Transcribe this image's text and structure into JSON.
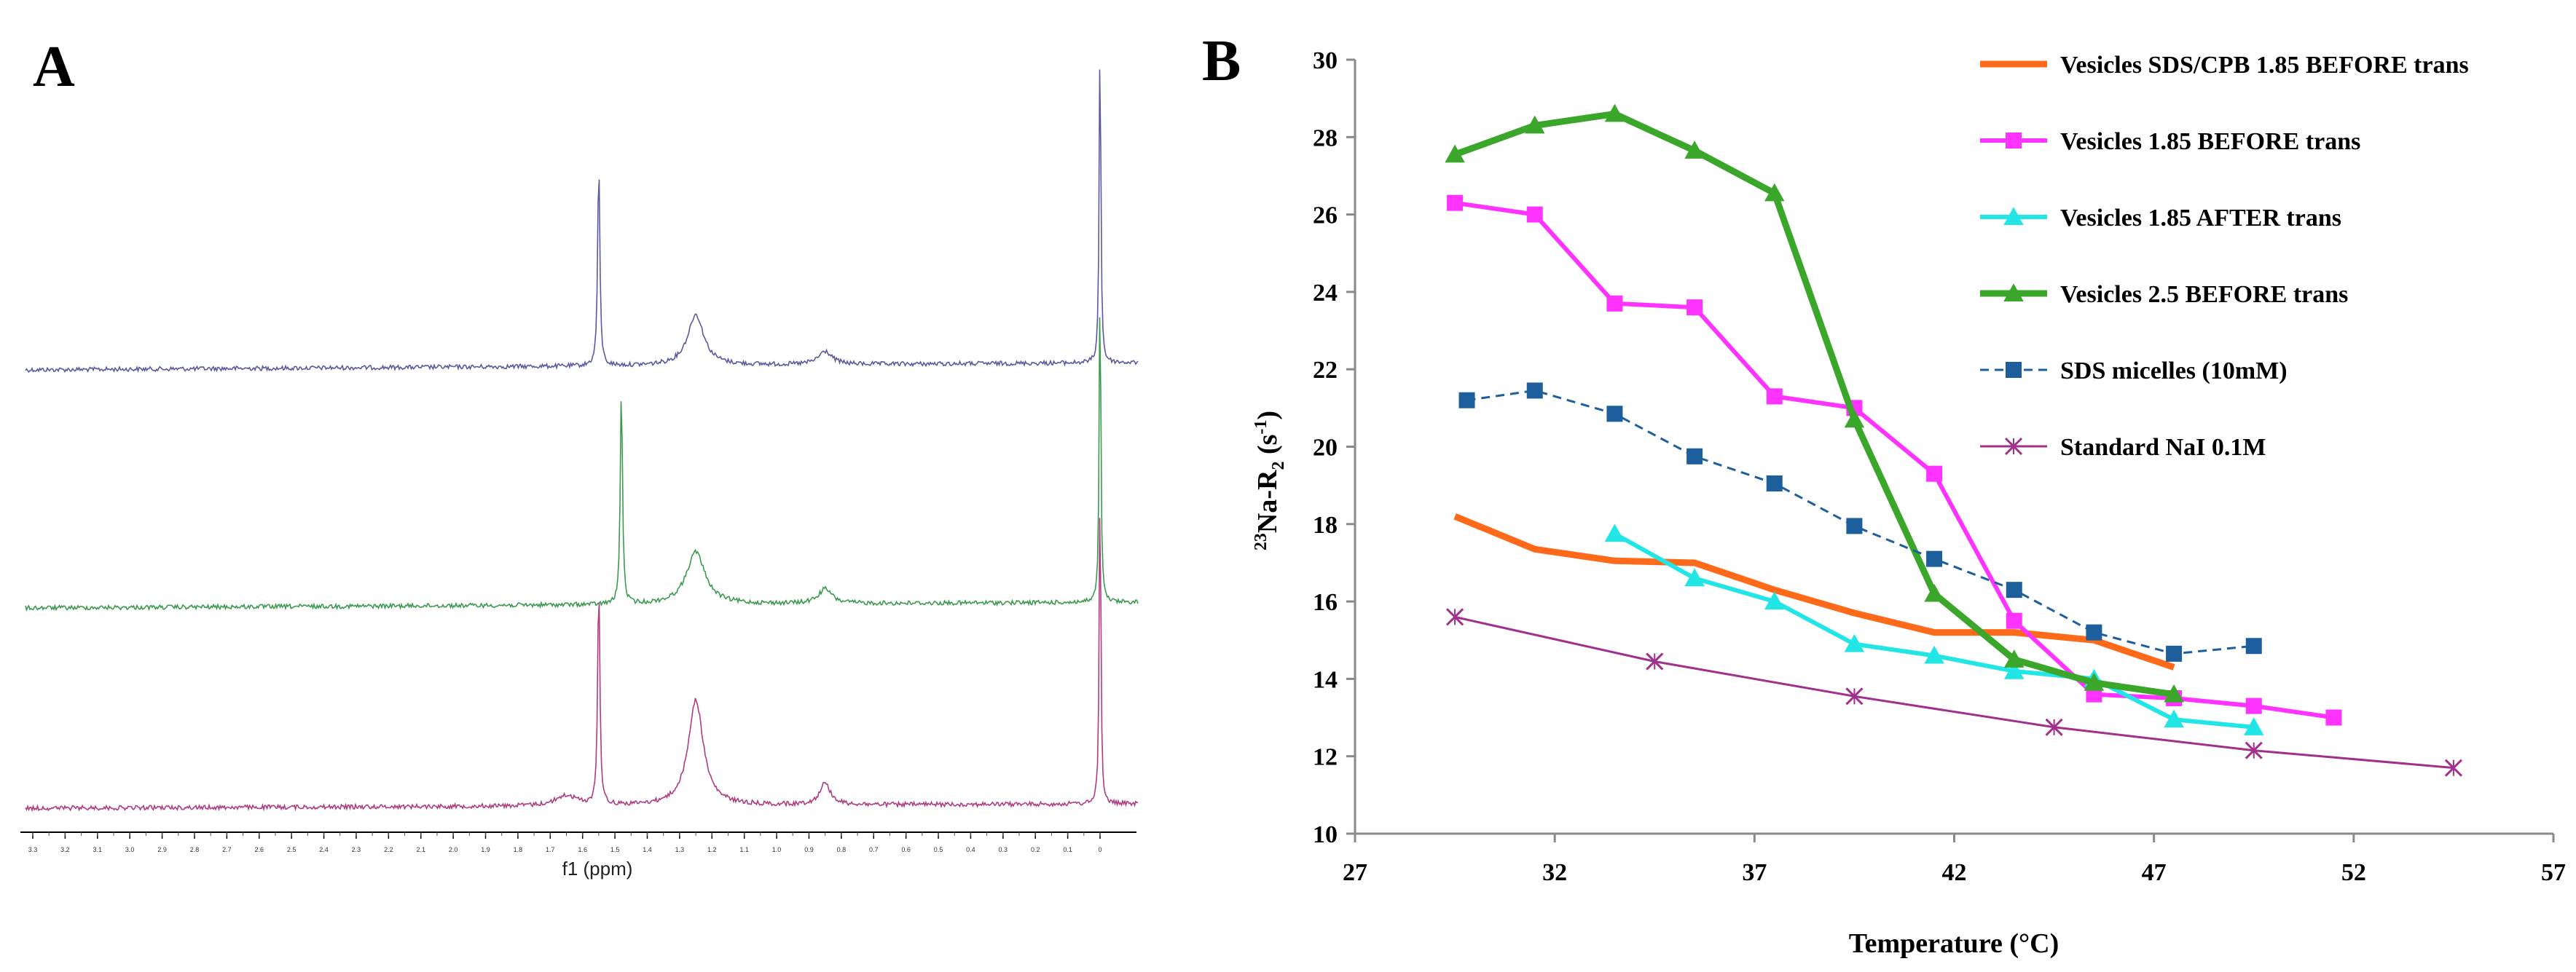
{
  "panel_a": {
    "label": "A",
    "xlabel": "f1 (ppm)",
    "tick_labels": [
      "3.3",
      "3.2",
      "3.1",
      "3.0",
      "2.9",
      "2.8",
      "2.7",
      "2.6",
      "2.5",
      "2.4",
      "2.3",
      "2.2",
      "2.1",
      "2.0",
      "1.9",
      "1.8",
      "1.7",
      "1.6",
      "1.5",
      "1.4",
      "1.3",
      "1.2",
      "1.1",
      "1.0",
      "0.9",
      "0.8",
      "0.7",
      "0.6",
      "0.5",
      "0.4",
      "0.3",
      "0.2",
      "0.1",
      "0"
    ],
    "spectra": [
      {
        "name": "top-spectrum",
        "color": "#5a5aa0",
        "peaks_ppm": [
          1.55,
          1.25,
          0.85,
          0.0
        ]
      },
      {
        "name": "middle-spectrum",
        "color": "#3c9a50",
        "peaks_ppm": [
          1.48,
          1.25,
          0.85,
          0.0
        ]
      },
      {
        "name": "bottom-spectrum",
        "color": "#b03c80",
        "peaks_ppm": [
          1.55,
          1.25,
          0.85,
          0.0
        ]
      }
    ]
  },
  "chart_data": {
    "type": "line",
    "panel_label": "B",
    "title": "",
    "xlabel": "Temperature (°C)",
    "ylabel_sup": "23",
    "ylabel_main": "Na-R",
    "ylabel_sub": "2",
    "ylabel_unit_pre": " (s",
    "ylabel_unit_sup": "-1",
    "ylabel_unit_post": ")",
    "xlim": [
      27,
      57
    ],
    "ylim": [
      10,
      30
    ],
    "xticks": [
      27,
      32,
      37,
      42,
      47,
      52,
      57
    ],
    "yticks": [
      10,
      12,
      14,
      16,
      18,
      20,
      22,
      24,
      26,
      28,
      30
    ],
    "grid": false,
    "legend_position": "top-right",
    "series": [
      {
        "name": "Vesicles SDS/CPB 1.85 BEFORE trans",
        "color": "#ff6a1a",
        "marker": "none",
        "dash": "solid",
        "width": "thick",
        "x": [
          29.5,
          31.5,
          33.5,
          35.5,
          37.5,
          39.5,
          41.5,
          43.5,
          45.5,
          47.5
        ],
        "y": [
          18.2,
          17.35,
          17.05,
          17.0,
          16.3,
          15.7,
          15.2,
          15.2,
          15.0,
          14.3
        ]
      },
      {
        "name": "Vesicles 1.85 BEFORE trans",
        "color": "#ff33ff",
        "marker": "square",
        "dash": "solid",
        "width": "medium",
        "x": [
          29.5,
          31.5,
          33.5,
          35.5,
          37.5,
          39.5,
          41.5,
          43.5,
          45.5,
          47.5,
          49.5,
          51.5
        ],
        "y": [
          26.3,
          26.0,
          23.7,
          23.6,
          21.3,
          21.0,
          19.3,
          15.5,
          13.6,
          13.5,
          13.3,
          13.0
        ]
      },
      {
        "name": "Vesicles 1.85 AFTER trans",
        "color": "#22e6e6",
        "marker": "triangle",
        "dash": "solid",
        "width": "medium",
        "x": [
          33.5,
          35.5,
          37.5,
          39.5,
          41.5,
          43.5,
          45.5,
          47.5,
          49.5
        ],
        "y": [
          17.75,
          16.6,
          16.0,
          14.9,
          14.6,
          14.2,
          14.0,
          12.95,
          12.75
        ]
      },
      {
        "name": "Vesicles 2.5 BEFORE trans",
        "color": "#3aa62a",
        "marker": "triangle",
        "dash": "solid",
        "width": "thick",
        "x": [
          29.5,
          31.5,
          33.5,
          35.5,
          37.5,
          39.5,
          41.5,
          43.5,
          45.5,
          47.5
        ],
        "y": [
          27.55,
          28.3,
          28.6,
          27.65,
          26.55,
          20.7,
          16.2,
          14.5,
          13.9,
          13.6
        ]
      },
      {
        "name": "SDS micelles (10mM)",
        "color": "#1c5f9c",
        "marker": "square",
        "dash": "dashed",
        "width": "thin",
        "x": [
          29.8,
          31.5,
          33.5,
          35.5,
          37.5,
          39.5,
          41.5,
          43.5,
          45.5,
          47.5,
          49.5
        ],
        "y": [
          21.2,
          21.45,
          20.85,
          19.75,
          19.05,
          17.95,
          17.1,
          16.3,
          15.2,
          14.65,
          14.85
        ]
      },
      {
        "name": "Standard NaI 0.1M",
        "color": "#a0308c",
        "marker": "x",
        "dash": "solid",
        "width": "thin",
        "x": [
          29.5,
          34.5,
          39.5,
          44.5,
          49.5,
          54.5
        ],
        "y": [
          15.6,
          14.45,
          13.55,
          12.75,
          12.15,
          11.7
        ]
      }
    ]
  }
}
